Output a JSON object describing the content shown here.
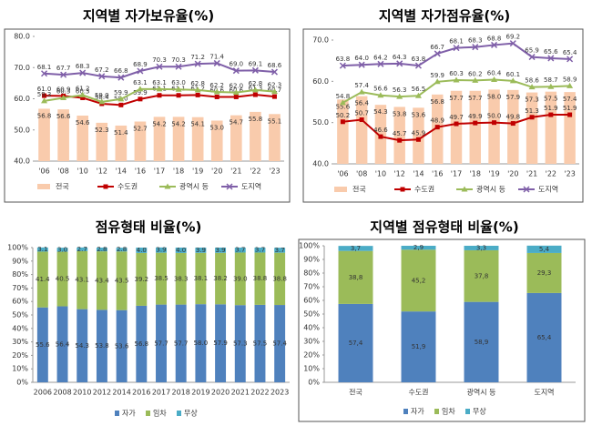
{
  "chart_data": [
    {
      "type": "bar",
      "title": "지역별 자가보유율(%)",
      "categories": [
        "'06",
        "'08",
        "'10",
        "'12",
        "'14",
        "'16",
        "'17",
        "'18",
        "'19",
        "'20",
        "'21",
        "'22",
        "'23"
      ],
      "ylim": [
        40,
        80
      ],
      "yticks": [
        {
          "value": 40,
          "label": "40.0"
        },
        {
          "value": 50,
          "label": "50.0"
        },
        {
          "value": 60,
          "label": "60.0"
        },
        {
          "value": 70,
          "label": "70.0"
        },
        {
          "value": 80,
          "label": "80.0"
        }
      ],
      "series": [
        {
          "name": "전국",
          "type": "bar",
          "color": "#f9cbac",
          "values": [
            56.8,
            56.6,
            54.6,
            52.3,
            51.4,
            52.7,
            54.2,
            54.2,
            54.1,
            53.0,
            54.7,
            55.8,
            55.1
          ],
          "value_labels": [
            "56.8",
            "56.6",
            "54.6",
            "52.3",
            "51.4",
            "52.7",
            "54.2",
            "54.2",
            "54.1",
            "53.0",
            "54.7",
            "55.8",
            "55.1"
          ]
        },
        {
          "name": "수도권",
          "type": "line",
          "marker": "square",
          "color": "#c00000",
          "values": [
            61.0,
            60.9,
            60.3,
            58.4,
            58.0,
            59.9,
            61.1,
            61.1,
            61.2,
            60.6,
            60.6,
            61.3,
            60.7
          ],
          "value_labels": [
            "61.0",
            "60.9",
            "60.3",
            "58.4",
            "58.0",
            "59.9",
            "61.1",
            "61.1",
            "61.2",
            "60.6",
            "60.6",
            "61.3",
            "60.7"
          ]
        },
        {
          "name": "광역시 등",
          "type": "line",
          "marker": "triangle",
          "color": "#9bbb59",
          "values": [
            59.3,
            60.3,
            61.2,
            59.0,
            59.9,
            63.1,
            63.1,
            63.0,
            62.8,
            62.2,
            62.0,
            62.8,
            62.3
          ],
          "value_labels": [
            "59.3",
            "60.3",
            "61.2",
            "59.0",
            "59.9",
            "63.1",
            "63.1",
            "63.0",
            "62.8",
            "62.2",
            "62.0",
            "62.8",
            "62.3"
          ]
        },
        {
          "name": "도지역",
          "type": "line",
          "marker": "x",
          "color": "#7f5fa8",
          "values": [
            68.1,
            67.7,
            68.3,
            67.2,
            66.8,
            68.9,
            70.3,
            70.3,
            71.2,
            71.4,
            69.0,
            69.1,
            68.6
          ],
          "value_labels": [
            "68.1",
            "67.7",
            "68.3",
            "67.2",
            "66.8",
            "68.9",
            "70.3",
            "70.3",
            "71.2",
            "71.4",
            "69.0",
            "69.1",
            "68.6"
          ]
        }
      ]
    },
    {
      "type": "bar",
      "title": "지역별 자가점유율(%)",
      "categories": [
        "'06",
        "'08",
        "'10",
        "'12",
        "'14",
        "'16",
        "'17",
        "'18",
        "'19",
        "'20",
        "'21",
        "'22",
        "'23"
      ],
      "ylim": [
        40,
        70
      ],
      "yticks": [
        {
          "value": 40,
          "label": "40.0"
        },
        {
          "value": 50,
          "label": "50.0"
        },
        {
          "value": 60,
          "label": "60.0"
        },
        {
          "value": 70,
          "label": "70.0"
        }
      ],
      "series": [
        {
          "name": "전국",
          "type": "bar",
          "color": "#f9cbac",
          "values": [
            55.6,
            56.4,
            54.3,
            53.8,
            53.6,
            56.8,
            57.7,
            57.7,
            58.0,
            57.9,
            57.3,
            57.5,
            57.4
          ],
          "value_labels": [
            "55.6",
            "56.4",
            "54.3",
            "53.8",
            "53.6",
            "56.8",
            "57.7",
            "57.7",
            "58.0",
            "57.9",
            "57.3",
            "57.5",
            "57.4"
          ]
        },
        {
          "name": "수도권",
          "type": "line",
          "marker": "square",
          "color": "#c00000",
          "values": [
            50.2,
            50.7,
            46.6,
            45.7,
            45.9,
            48.9,
            49.7,
            49.9,
            50.0,
            49.8,
            51.3,
            51.9,
            51.9
          ],
          "value_labels": [
            "50.2",
            "50.7",
            "46.6",
            "45.7",
            "45.9",
            "48.9",
            "49.7",
            "49.9",
            "50.0",
            "49.8",
            "51.3",
            "51.9",
            "51.9"
          ]
        },
        {
          "name": "광역시 등",
          "type": "line",
          "marker": "triangle",
          "color": "#9bbb59",
          "values": [
            54.8,
            57.4,
            56.6,
            56.3,
            56.5,
            59.9,
            60.3,
            60.2,
            60.4,
            60.1,
            58.6,
            58.7,
            58.9
          ],
          "value_labels": [
            "54.8",
            "57.4",
            "56.6",
            "56.3",
            "56.5",
            "59.9",
            "60.3",
            "60.2",
            "60.4",
            "60.1",
            "58.6",
            "58.7",
            "58.9"
          ]
        },
        {
          "name": "도지역",
          "type": "line",
          "marker": "x",
          "color": "#7f5fa8",
          "values": [
            63.8,
            64.0,
            64.2,
            64.3,
            63.8,
            66.7,
            68.1,
            68.3,
            68.8,
            69.2,
            65.9,
            65.6,
            65.4
          ],
          "value_labels": [
            "63.8",
            "64.0",
            "64.2",
            "64.3",
            "63.8",
            "66.7",
            "68.1",
            "68.3",
            "68.8",
            "69.2",
            "65.9",
            "65.6",
            "65.4"
          ]
        }
      ]
    },
    {
      "type": "stacked_bar",
      "title": "점유형태 비율(%)",
      "categories": [
        "2006",
        "2008",
        "2010",
        "2012",
        "2014",
        "2016",
        "2017",
        "2018",
        "2019",
        "2020",
        "2021",
        "2022",
        "2023"
      ],
      "ylim": [
        0,
        100
      ],
      "yticks": [
        {
          "value": 0,
          "label": "0%"
        },
        {
          "value": 10,
          "label": "10%"
        },
        {
          "value": 20,
          "label": "20%"
        },
        {
          "value": 30,
          "label": "30%"
        },
        {
          "value": 40,
          "label": "40%"
        },
        {
          "value": 50,
          "label": "50%"
        },
        {
          "value": 60,
          "label": "60%"
        },
        {
          "value": 70,
          "label": "70%"
        },
        {
          "value": 80,
          "label": "80%"
        },
        {
          "value": 90,
          "label": "90%"
        },
        {
          "value": 100,
          "label": "100%"
        }
      ],
      "series": [
        {
          "name": "자가",
          "color": "#4f81bd",
          "values": [
            55.6,
            56.4,
            54.3,
            53.8,
            53.6,
            56.8,
            57.7,
            57.7,
            58.0,
            57.9,
            57.3,
            57.5,
            57.4
          ],
          "value_labels": [
            "55.6",
            "56.4",
            "54.3",
            "53.8",
            "53.6",
            "56.8",
            "57.7",
            "57.7",
            "58.0",
            "57.9",
            "57.3",
            "57.5",
            "57.4"
          ]
        },
        {
          "name": "임차",
          "color": "#9bbb59",
          "values": [
            41.4,
            40.5,
            43.1,
            43.4,
            43.5,
            39.2,
            38.5,
            38.3,
            38.1,
            38.2,
            39.0,
            38.8,
            38.8
          ],
          "value_labels": [
            "41.4",
            "40.5",
            "43.1",
            "43.4",
            "43.5",
            "39.2",
            "38.5",
            "38.3",
            "38.1",
            "38.2",
            "39.0",
            "38.8",
            "38.8"
          ]
        },
        {
          "name": "무상",
          "color": "#4bacc6",
          "values": [
            3.1,
            3.0,
            2.7,
            2.8,
            2.8,
            4.0,
            3.9,
            4.0,
            3.9,
            3.9,
            3.7,
            3.7,
            3.7
          ],
          "value_labels": [
            "3.1",
            "3.0",
            "2.7",
            "2.8",
            "2.8",
            "4.0",
            "3.9",
            "4.0",
            "3.9",
            "3.9",
            "3.7",
            "3.7",
            "3.7"
          ]
        }
      ]
    },
    {
      "type": "stacked_bar",
      "title": "지역별 점유형태 비율(%)",
      "categories": [
        "전국",
        "수도권",
        "광역시 등",
        "도지역"
      ],
      "ylim": [
        0,
        100
      ],
      "yticks": [
        {
          "value": 0,
          "label": "0%"
        },
        {
          "value": 10,
          "label": "10%"
        },
        {
          "value": 20,
          "label": "20%"
        },
        {
          "value": 30,
          "label": "30%"
        },
        {
          "value": 40,
          "label": "40%"
        },
        {
          "value": 50,
          "label": "50%"
        },
        {
          "value": 60,
          "label": "60%"
        },
        {
          "value": 70,
          "label": "70%"
        },
        {
          "value": 80,
          "label": "80%"
        },
        {
          "value": 90,
          "label": "90%"
        },
        {
          "value": 100,
          "label": "100%"
        }
      ],
      "series": [
        {
          "name": "자가",
          "color": "#4f81bd",
          "values": [
            57.4,
            51.9,
            58.9,
            65.4
          ],
          "value_labels": [
            "57,4",
            "51,9",
            "58,9",
            "65,4"
          ]
        },
        {
          "name": "임차",
          "color": "#9bbb59",
          "values": [
            38.8,
            45.2,
            37.8,
            29.3
          ],
          "value_labels": [
            "38,8",
            "45,2",
            "37,8",
            "29,3"
          ]
        },
        {
          "name": "무상",
          "color": "#4bacc6",
          "values": [
            3.7,
            2.9,
            3.3,
            5.4
          ],
          "value_labels": [
            "3,7",
            "2,9",
            "3,3",
            "5,4"
          ]
        }
      ]
    }
  ]
}
